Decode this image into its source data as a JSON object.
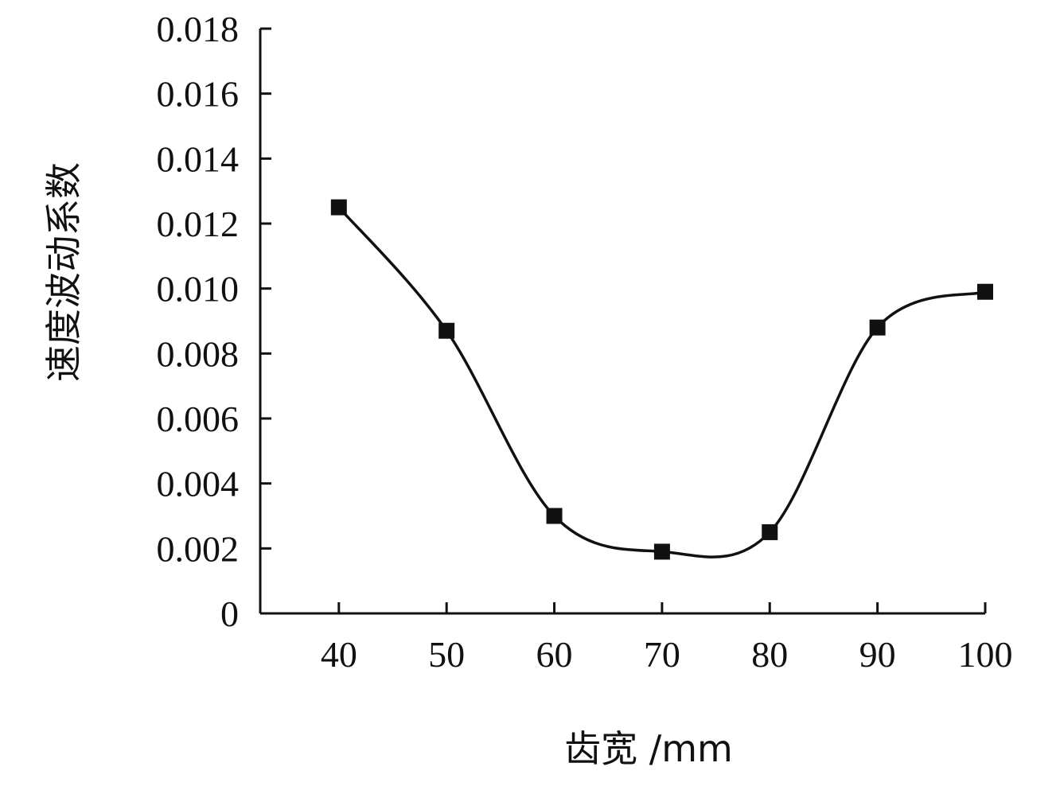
{
  "chart_data": {
    "type": "line",
    "xlabel": "齿宽 /mm",
    "ylabel": "速度波动系数",
    "x": [
      40,
      50,
      60,
      70,
      80,
      90,
      100
    ],
    "series": [
      {
        "values": [
          0.0125,
          0.0087,
          0.003,
          0.0019,
          0.0025,
          0.0088,
          0.0099
        ]
      }
    ],
    "xticks": [
      "40",
      "50",
      "60",
      "70",
      "80",
      "90",
      "100"
    ],
    "yticks": [
      "0",
      "0.002",
      "0.004",
      "0.006",
      "0.008",
      "0.010",
      "0.012",
      "0.014",
      "0.016",
      "0.018"
    ],
    "ylim": [
      0,
      0.018
    ],
    "xlim": [
      32.7,
      100
    ],
    "grid": false,
    "legend": "none",
    "line_color": "#111111",
    "marker": "square"
  }
}
